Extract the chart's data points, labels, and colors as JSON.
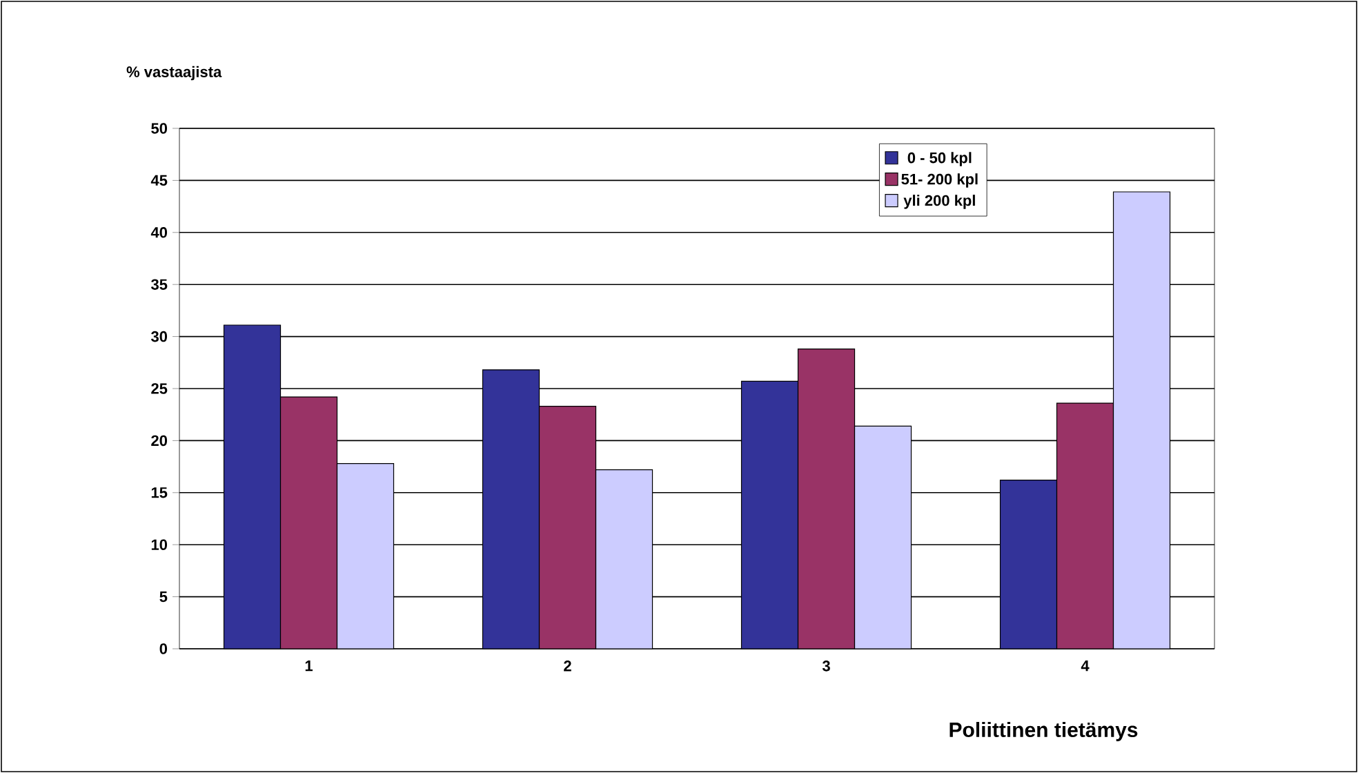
{
  "chart_data": {
    "type": "bar",
    "ylabel": "% vastaajista",
    "xlabel": "Poliittinen tietämys",
    "categories": [
      "1",
      "2",
      "3",
      "4"
    ],
    "series": [
      {
        "name": "0  -   50 kpl",
        "color": "#333399",
        "values": [
          31.1,
          26.8,
          25.7,
          16.2
        ]
      },
      {
        "name": "51- 200 kpl",
        "color": "#993366",
        "values": [
          24.2,
          23.3,
          28.8,
          23.6
        ]
      },
      {
        "name": "yli  200 kpl",
        "color": "#ccccff",
        "values": [
          17.8,
          17.2,
          21.4,
          43.9
        ]
      }
    ],
    "ylim": [
      0,
      50
    ],
    "yticks": [
      0,
      5,
      10,
      15,
      20,
      25,
      30,
      35,
      40,
      45,
      50
    ],
    "grid": "y",
    "legend": "top right"
  }
}
